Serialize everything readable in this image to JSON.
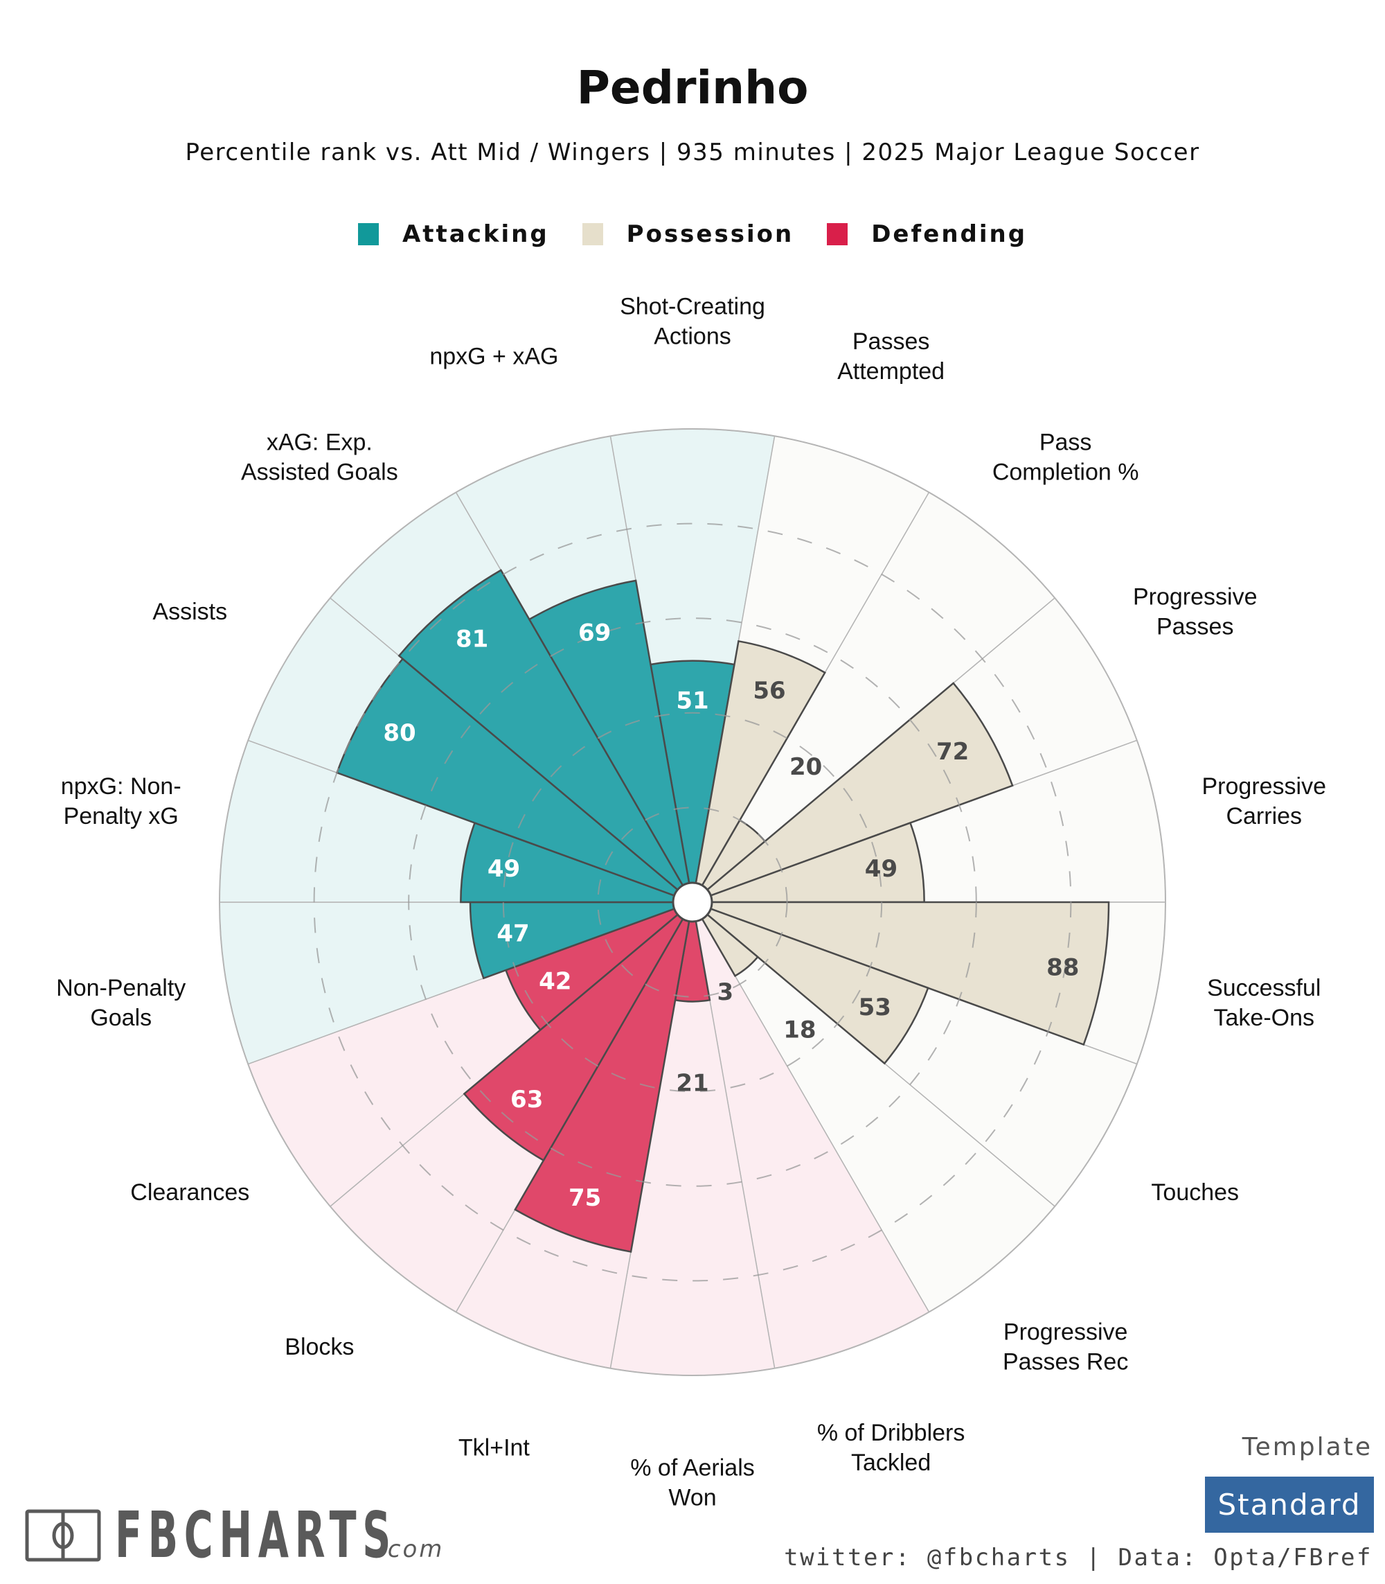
{
  "header": {
    "title": "Pedrinho",
    "subtitle": "Percentile rank vs. Att Mid / Wingers | 935 minutes | 2025 Major League Soccer"
  },
  "legend": [
    {
      "label": "Attacking",
      "color": "#11999a"
    },
    {
      "label": "Possession",
      "color": "#e6dfcb"
    },
    {
      "label": "Defending",
      "color": "#d91f4a"
    }
  ],
  "colors": {
    "attacking": {
      "bar": "#2fa6ac",
      "bg": "#e8f5f5",
      "text": "#ffffff"
    },
    "possession": {
      "bar": "#e8e2d2",
      "bg": "#fbfbf9",
      "text": "#4a4a4a"
    },
    "defending": {
      "bar": "#e0486a",
      "bg": "#fcedf1",
      "text": "#ffffff"
    }
  },
  "chart_data": {
    "type": "radar-bar",
    "title": "Pedrinho",
    "subtitle": "Percentile rank vs. Att Mid / Wingers | 935 minutes | 2025 Major League Soccer",
    "scale": [
      0,
      100
    ],
    "grid_rings": [
      20,
      40,
      60,
      80
    ],
    "legend_position": "top",
    "categories": [
      {
        "label": "Shot-Creating\nActions",
        "value": 51,
        "group": "attacking"
      },
      {
        "label": "Passes\nAttempted",
        "value": 56,
        "group": "possession"
      },
      {
        "label": "Pass\nCompletion %",
        "value": 20,
        "group": "possession"
      },
      {
        "label": "Progressive\nPasses",
        "value": 72,
        "group": "possession"
      },
      {
        "label": "Progressive\nCarries",
        "value": 49,
        "group": "possession"
      },
      {
        "label": "Successful\nTake-Ons",
        "value": 88,
        "group": "possession"
      },
      {
        "label": "Touches",
        "value": 53,
        "group": "possession"
      },
      {
        "label": "Progressive\nPasses Rec",
        "value": 18,
        "group": "possession"
      },
      {
        "label": "% of Dribblers\nTackled",
        "value": 3,
        "group": "defending"
      },
      {
        "label": "% of Aerials\nWon",
        "value": 21,
        "group": "defending"
      },
      {
        "label": "Tkl+Int",
        "value": 75,
        "group": "defending"
      },
      {
        "label": "Blocks",
        "value": 63,
        "group": "defending"
      },
      {
        "label": "Clearances",
        "value": 42,
        "group": "defending"
      },
      {
        "label": "Non-Penalty\nGoals",
        "value": 47,
        "group": "attacking"
      },
      {
        "label": "npxG: Non-\nPenalty xG",
        "value": 49,
        "group": "attacking"
      },
      {
        "label": "Assists",
        "value": 80,
        "group": "attacking"
      },
      {
        "label": "xAG: Exp.\nAssisted Goals",
        "value": 81,
        "group": "attacking"
      },
      {
        "label": "npxG + xAG",
        "value": 69,
        "group": "attacking"
      }
    ]
  },
  "footer": {
    "logo_text": "FBCHARTS",
    "logo_suffix": ".com",
    "template_label": "Template",
    "template_value": "Standard",
    "credit": "twitter: @fbcharts | Data: Opta/FBref"
  }
}
